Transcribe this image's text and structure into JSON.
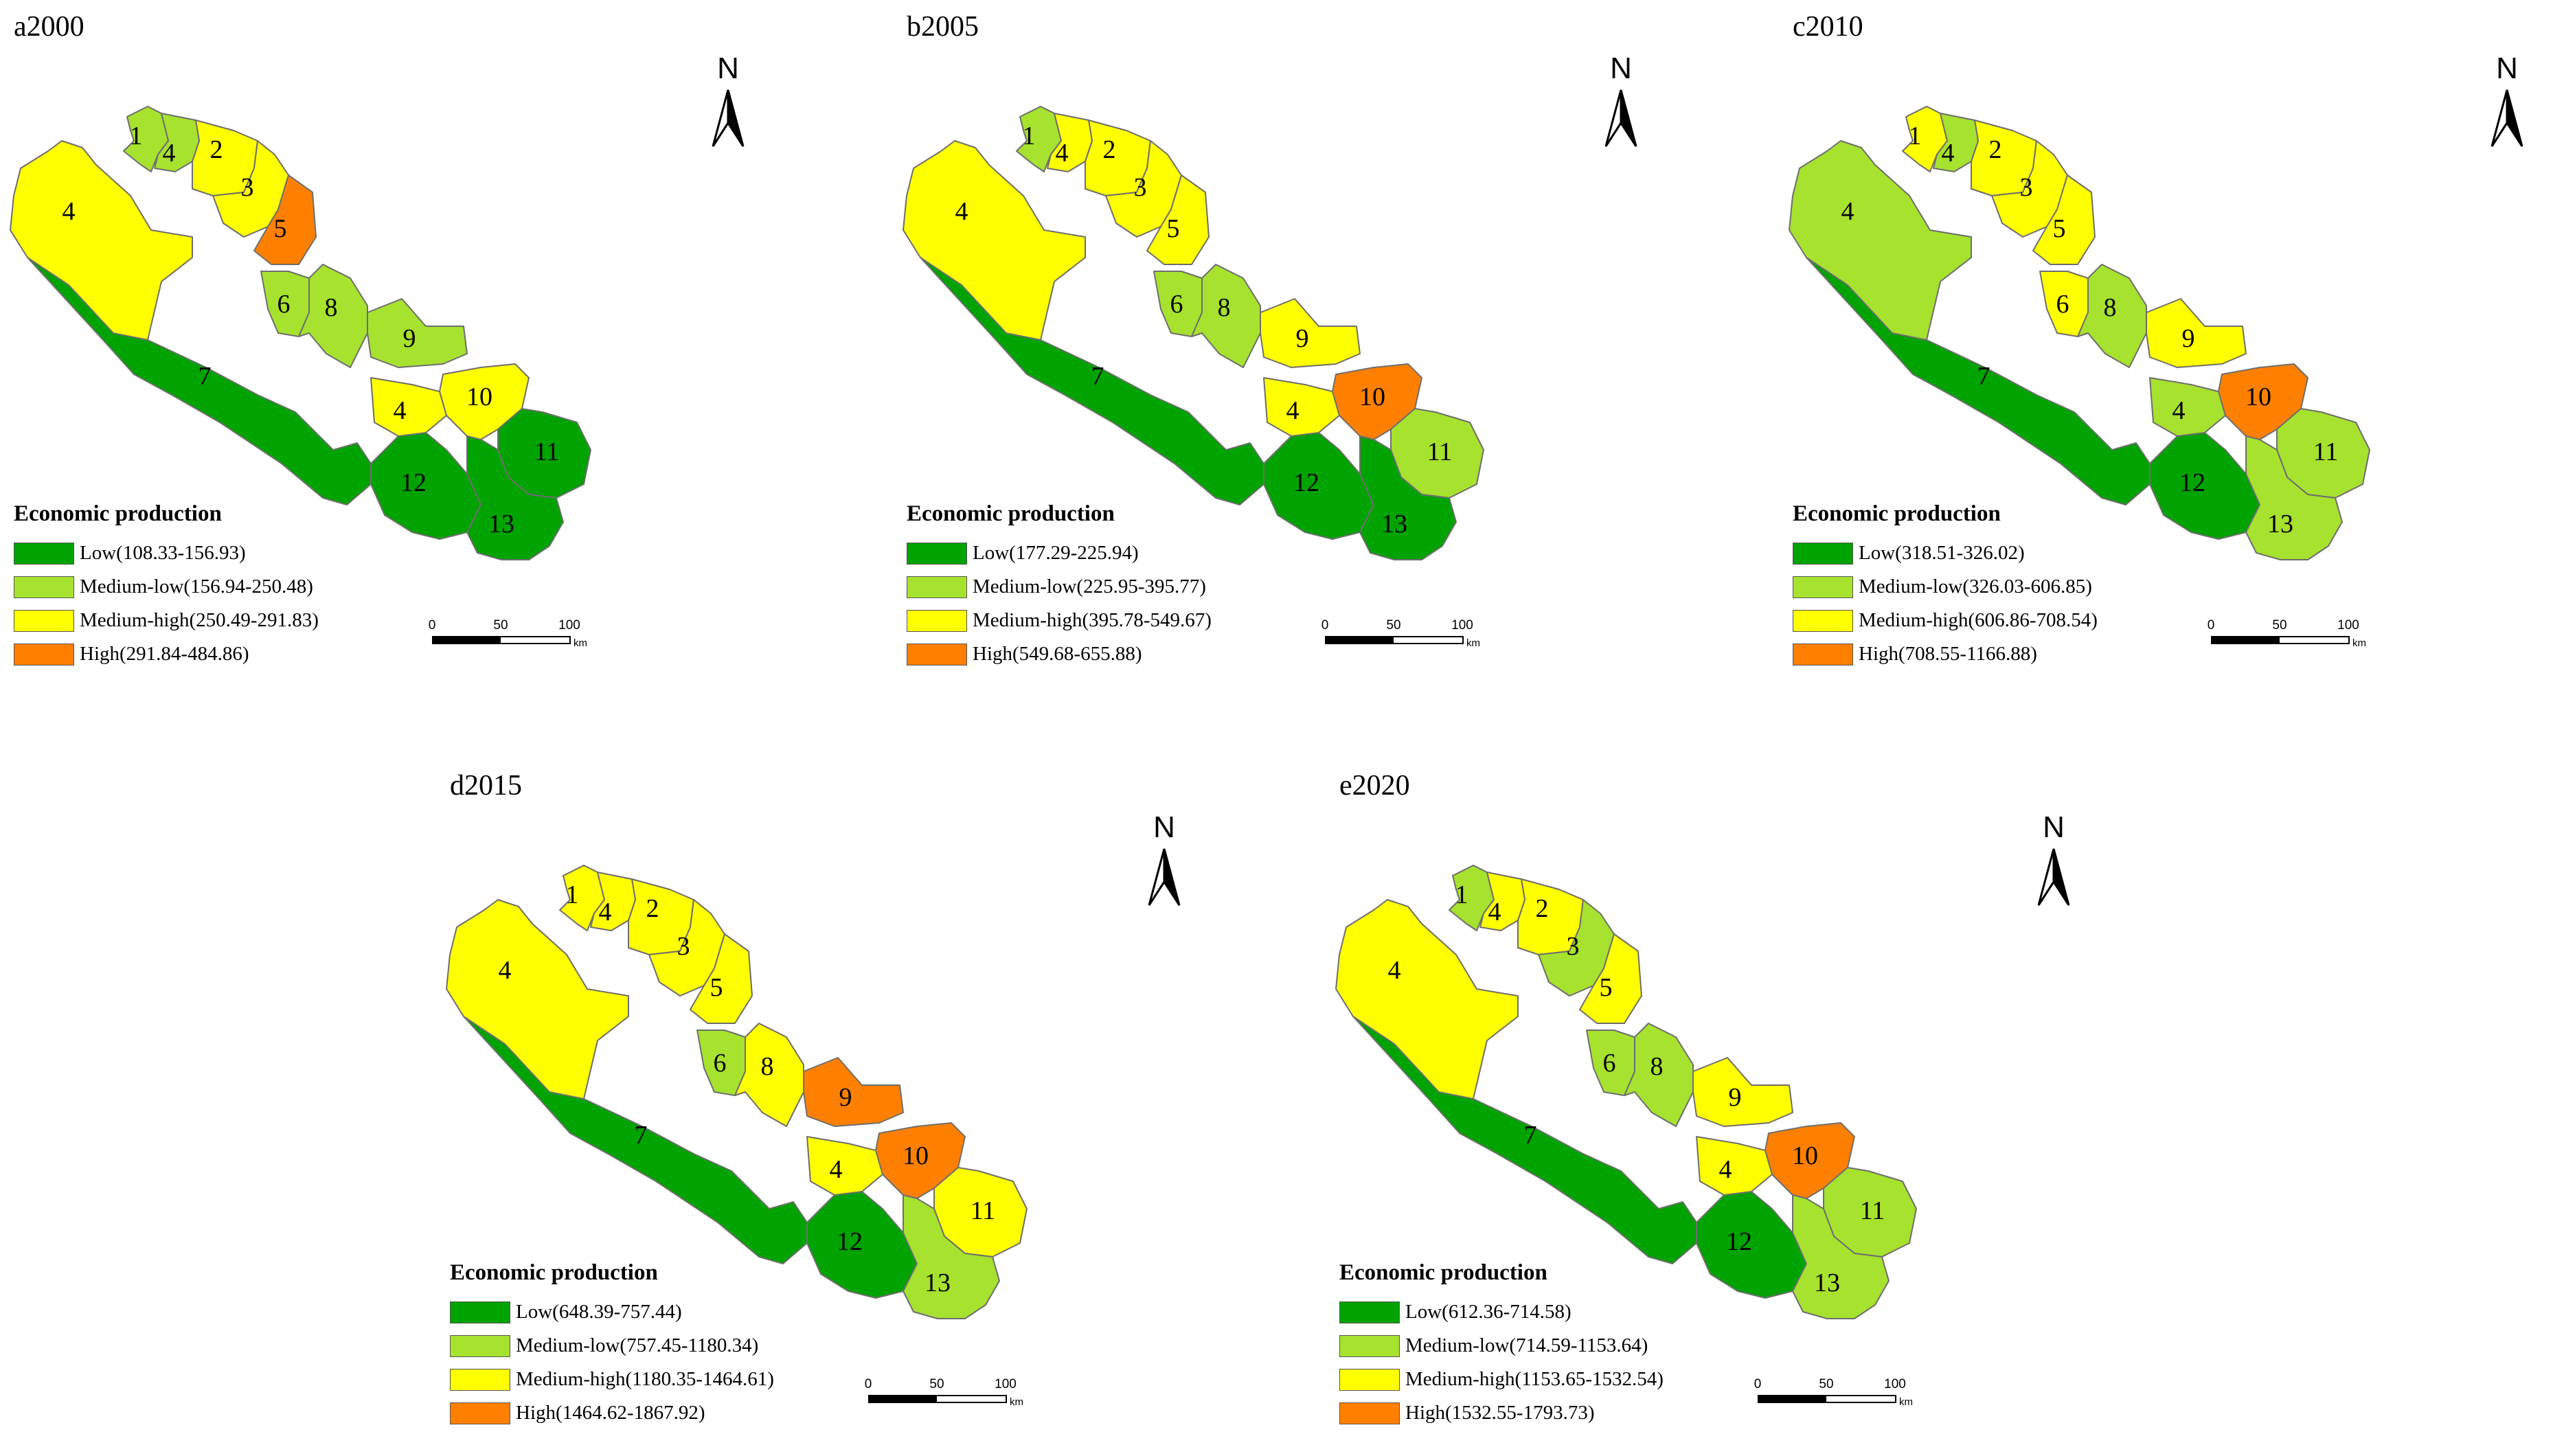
{
  "colors": {
    "low": "#00a300",
    "medium_low": "#a6e22e",
    "medium_high": "#ffff00",
    "high": "#ff8000",
    "border": "#6e6e6e"
  },
  "north_letter": "N",
  "scale_bar": {
    "ticks": [
      "0",
      "50",
      "100"
    ],
    "unit": "km"
  },
  "panels": [
    {
      "title": "a2000",
      "legend_title": "Economic production",
      "legend": [
        "Low(108.33-156.93)",
        "Medium-low(156.94-250.48)",
        "Medium-high(250.49-291.83)",
        "High(291.84-484.86)"
      ],
      "classes": {
        "1": "medium_low",
        "2": "medium_high",
        "3": "medium_high",
        "4a": "medium_low",
        "4b": "medium_high",
        "4c": "medium_high",
        "5": "high",
        "6": "medium_low",
        "7": "low",
        "8": "medium_low",
        "9": "medium_low",
        "10": "medium_high",
        "11": "low",
        "12": "low",
        "13": "low"
      }
    },
    {
      "title": "b2005",
      "legend_title": "Economic production",
      "legend": [
        "Low(177.29-225.94)",
        "Medium-low(225.95-395.77)",
        "Medium-high(395.78-549.67)",
        "High(549.68-655.88)"
      ],
      "classes": {
        "1": "medium_low",
        "2": "medium_high",
        "3": "medium_high",
        "4a": "medium_high",
        "4b": "medium_high",
        "4c": "medium_high",
        "5": "medium_high",
        "6": "medium_low",
        "7": "low",
        "8": "medium_low",
        "9": "medium_high",
        "10": "high",
        "11": "medium_low",
        "12": "low",
        "13": "low"
      }
    },
    {
      "title": "c2010",
      "legend_title": "Economic production",
      "legend": [
        "Low(318.51-326.02)",
        "Medium-low(326.03-606.85)",
        "Medium-high(606.86-708.54)",
        "High(708.55-1166.88)"
      ],
      "classes": {
        "1": "medium_high",
        "2": "medium_high",
        "3": "medium_high",
        "4a": "medium_low",
        "4b": "medium_low",
        "4c": "medium_low",
        "5": "medium_high",
        "6": "medium_high",
        "7": "low",
        "8": "medium_low",
        "9": "medium_high",
        "10": "high",
        "11": "medium_low",
        "12": "low",
        "13": "medium_low"
      }
    },
    {
      "title": "d2015",
      "legend_title": "Economic production",
      "legend": [
        "Low(648.39-757.44)",
        "Medium-low(757.45-1180.34)",
        "Medium-high(1180.35-1464.61)",
        "High(1464.62-1867.92)"
      ],
      "classes": {
        "1": "medium_high",
        "2": "medium_high",
        "3": "medium_high",
        "4a": "medium_high",
        "4b": "medium_high",
        "4c": "medium_high",
        "5": "medium_high",
        "6": "medium_low",
        "7": "low",
        "8": "medium_high",
        "9": "high",
        "10": "high",
        "11": "medium_high",
        "12": "low",
        "13": "medium_low"
      }
    },
    {
      "title": "e2020",
      "legend_title": "Economic production",
      "legend": [
        "Low(612.36-714.58)",
        "Medium-low(714.59-1153.64)",
        "Medium-high(1153.65-1532.54)",
        "High(1532.55-1793.73)"
      ],
      "classes": {
        "1": "medium_low",
        "2": "medium_high",
        "3": "medium_low",
        "4a": "medium_high",
        "4b": "medium_high",
        "4c": "medium_high",
        "5": "medium_high",
        "6": "medium_low",
        "7": "low",
        "8": "medium_low",
        "9": "medium_high",
        "10": "high",
        "11": "medium_low",
        "12": "low",
        "13": "medium_low"
      }
    }
  ],
  "region_labels": {
    "1": "1",
    "2": "2",
    "3": "3",
    "4a": "4",
    "4b": "4",
    "4c": "4",
    "5": "5",
    "6": "6",
    "7": "7",
    "8": "8",
    "9": "9",
    "10": "10",
    "11": "11",
    "12": "12",
    "13": "13"
  }
}
